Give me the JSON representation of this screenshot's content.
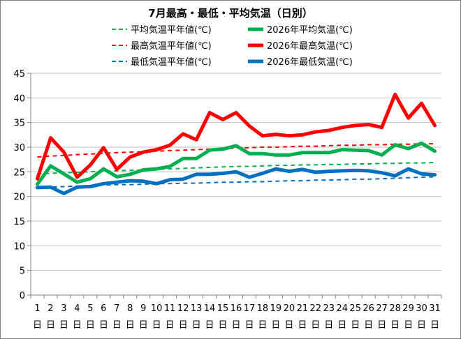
{
  "chart_data": {
    "type": "line",
    "title": "7月最高・最低・平均気温（日別）",
    "xlabel": "",
    "ylabel": "",
    "ylim": [
      0,
      45
    ],
    "yticks": [
      0,
      5,
      10,
      15,
      20,
      25,
      30,
      35,
      40,
      45
    ],
    "grid": true,
    "legend_position": "top",
    "day_suffix": "日",
    "categories": [
      "1",
      "2",
      "3",
      "4",
      "5",
      "6",
      "7",
      "8",
      "9",
      "10",
      "11",
      "12",
      "13",
      "14",
      "15",
      "16",
      "17",
      "18",
      "19",
      "20",
      "21",
      "22",
      "23",
      "24",
      "25",
      "26",
      "27",
      "28",
      "29",
      "30",
      "31"
    ],
    "series": [
      {
        "name": "平均気温平年値(℃)",
        "color": "#00b050",
        "style": "dashed",
        "values": [
          24.6,
          24.7,
          24.8,
          24.9,
          25.0,
          25.1,
          25.2,
          25.3,
          25.4,
          25.5,
          25.6,
          25.7,
          25.8,
          25.9,
          26.0,
          26.1,
          26.1,
          26.2,
          26.3,
          26.3,
          26.4,
          26.4,
          26.5,
          26.5,
          26.6,
          26.6,
          26.7,
          26.7,
          26.8,
          26.8,
          26.9
        ]
      },
      {
        "name": "2026年平均気温(℃)",
        "color": "#00b050",
        "style": "solid",
        "values": [
          22.5,
          26.2,
          24.6,
          22.9,
          23.6,
          25.6,
          24.0,
          24.5,
          25.4,
          25.6,
          26.1,
          27.7,
          27.7,
          29.4,
          29.6,
          30.3,
          28.7,
          28.7,
          28.4,
          28.4,
          28.9,
          28.9,
          28.9,
          29.5,
          29.4,
          29.3,
          28.4,
          30.5,
          29.7,
          30.8,
          29.2
        ]
      },
      {
        "name": "最高気温平年値(℃)",
        "color": "#ff0000",
        "style": "dashed",
        "values": [
          28.0,
          28.2,
          28.3,
          28.5,
          28.6,
          28.8,
          28.9,
          29.0,
          29.1,
          29.2,
          29.3,
          29.4,
          29.5,
          29.6,
          29.7,
          29.8,
          29.9,
          30.0,
          30.0,
          30.1,
          30.2,
          30.2,
          30.3,
          30.4,
          30.4,
          30.5,
          30.5,
          30.6,
          30.6,
          30.7,
          30.7
        ]
      },
      {
        "name": "2026年最高気温(℃)",
        "color": "#ff0000",
        "style": "solid",
        "values": [
          23.6,
          31.9,
          29.0,
          23.9,
          26.4,
          29.9,
          25.5,
          28.0,
          29.0,
          29.5,
          30.4,
          32.7,
          31.5,
          37.0,
          35.6,
          37.0,
          34.3,
          32.3,
          32.6,
          32.3,
          32.5,
          33.1,
          33.4,
          34.0,
          34.4,
          34.6,
          34.0,
          40.7,
          35.9,
          38.9,
          34.4
        ]
      },
      {
        "name": "最低気温平年値(℃)",
        "color": "#0070c0",
        "style": "dashed",
        "values": [
          21.9,
          21.9,
          22.0,
          22.1,
          22.2,
          22.3,
          22.4,
          22.4,
          22.5,
          22.6,
          22.6,
          22.7,
          22.7,
          22.8,
          22.9,
          22.9,
          23.0,
          23.0,
          23.1,
          23.2,
          23.2,
          23.3,
          23.3,
          23.4,
          23.5,
          23.5,
          23.6,
          23.7,
          23.8,
          23.9,
          24.0
        ]
      },
      {
        "name": "2026年最低気温(℃)",
        "color": "#0070c0",
        "style": "solid",
        "values": [
          21.8,
          21.9,
          20.6,
          21.9,
          22.0,
          22.6,
          22.9,
          23.2,
          23.1,
          22.6,
          23.4,
          23.5,
          24.5,
          24.5,
          24.7,
          25.0,
          23.9,
          24.7,
          25.6,
          25.1,
          25.5,
          24.9,
          25.1,
          25.2,
          25.3,
          25.2,
          24.8,
          24.2,
          25.6,
          24.6,
          24.4
        ]
      }
    ]
  }
}
